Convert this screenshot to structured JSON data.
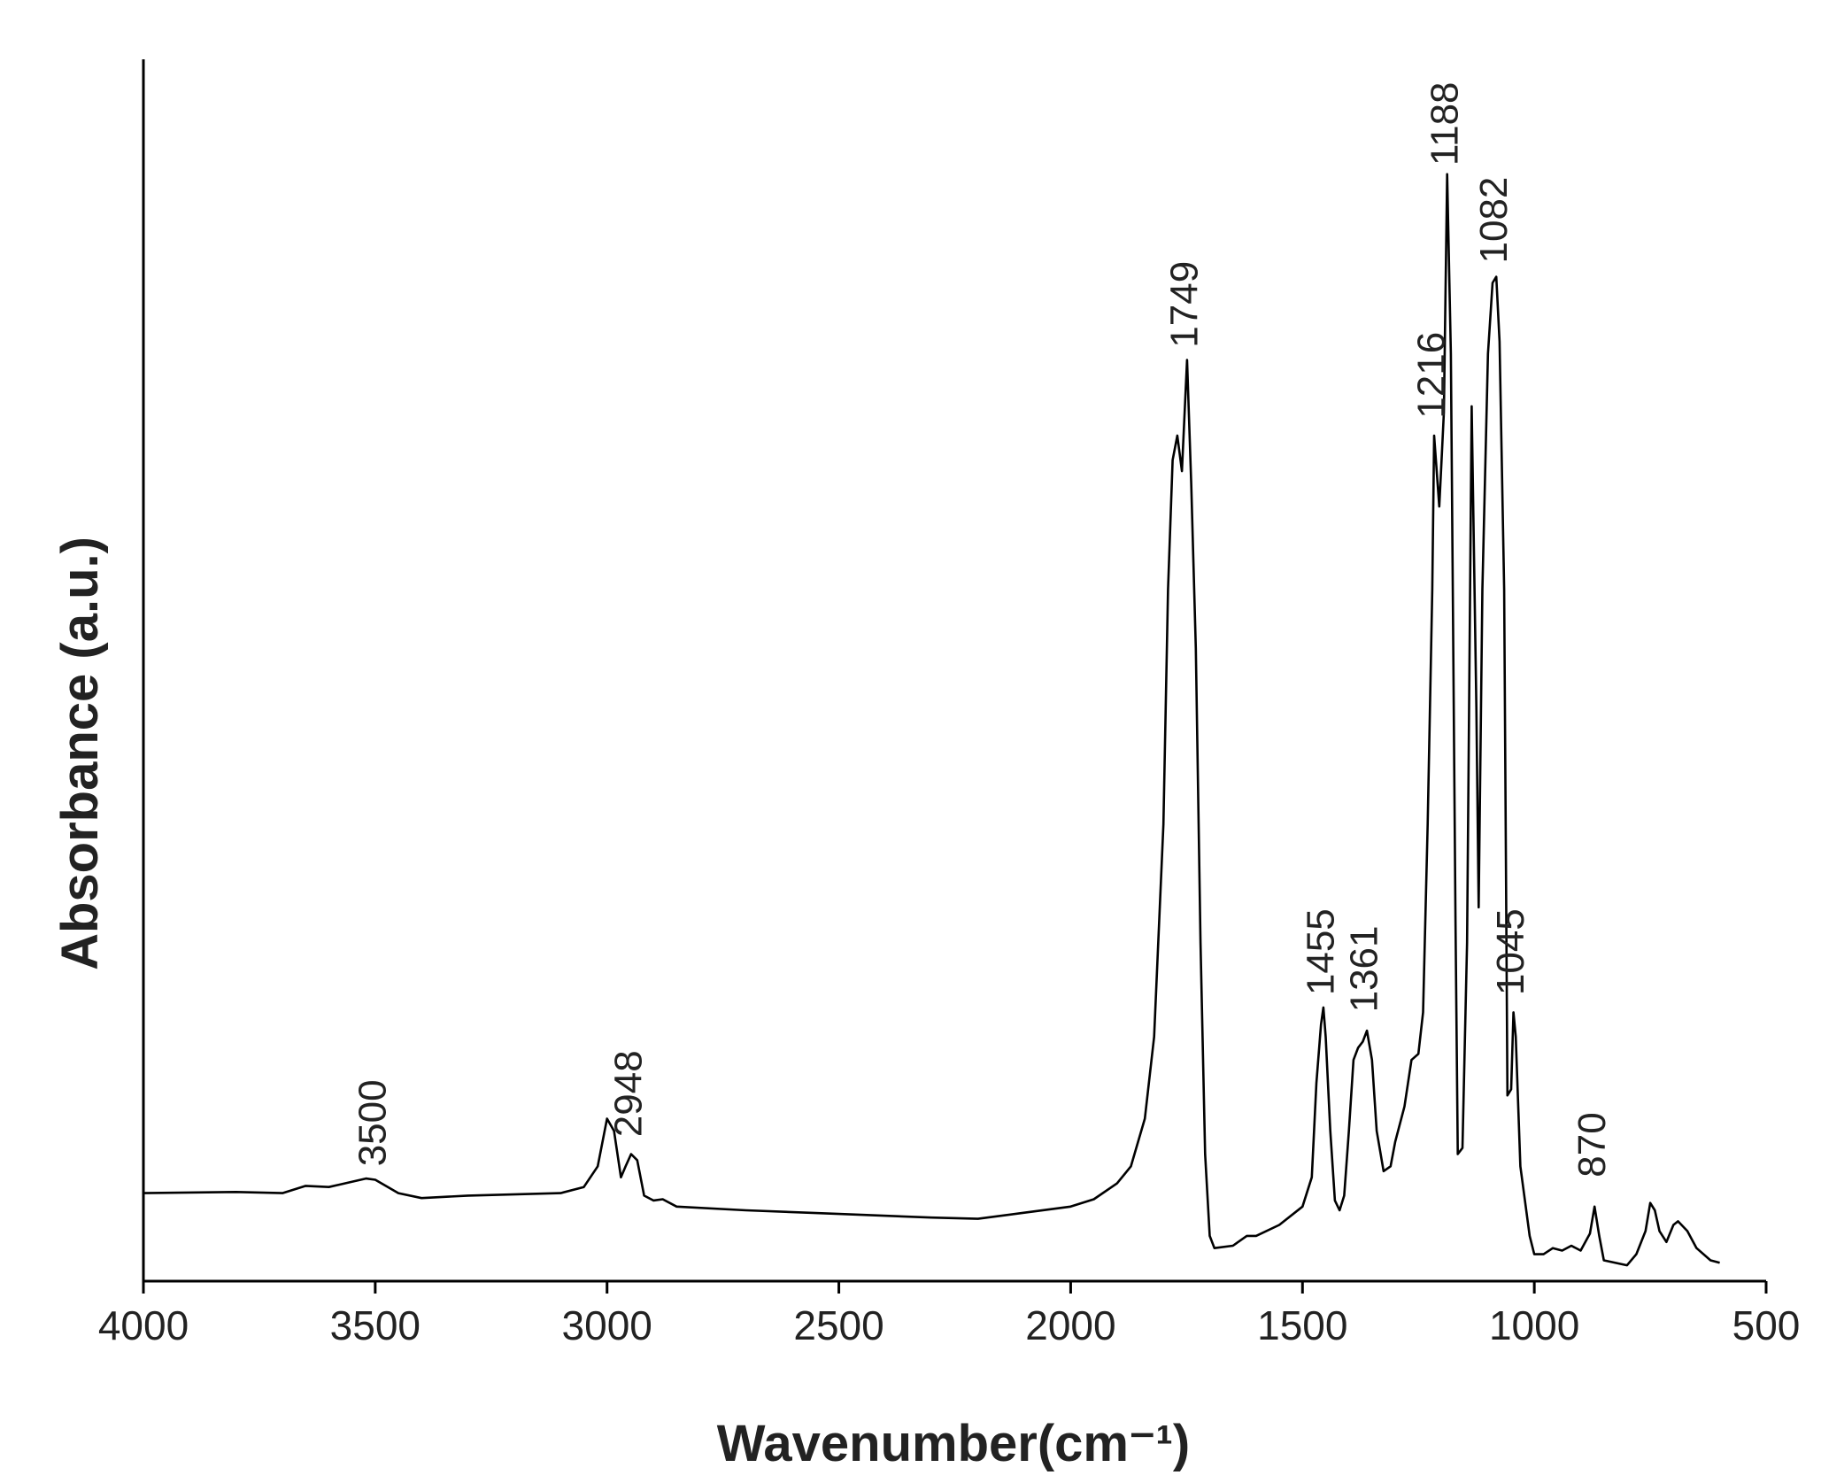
{
  "chart_data": {
    "type": "line",
    "xlabel": "Wavenumber(cm⁻¹)",
    "ylabel": "Absorbance (a.u.)",
    "xlim": [
      4000,
      500
    ],
    "xticks": [
      4000,
      3500,
      3000,
      2500,
      2000,
      1500,
      1000,
      500
    ],
    "ylim": [
      0,
      100
    ],
    "series": [
      {
        "color": "#000000",
        "x": [
          4000,
          3800,
          3700,
          3650,
          3600,
          3520,
          3500,
          3450,
          3400,
          3300,
          3100,
          3050,
          3020,
          3000,
          2985,
          2970,
          2960,
          2948,
          2935,
          2920,
          2900,
          2880,
          2850,
          2700,
          2500,
          2300,
          2200,
          2100,
          2000,
          1950,
          1900,
          1870,
          1840,
          1820,
          1800,
          1790,
          1780,
          1770,
          1760,
          1749,
          1740,
          1730,
          1720,
          1710,
          1700,
          1690,
          1650,
          1620,
          1600,
          1550,
          1500,
          1480,
          1470,
          1460,
          1455,
          1450,
          1440,
          1430,
          1420,
          1410,
          1400,
          1390,
          1380,
          1370,
          1361,
          1350,
          1340,
          1325,
          1310,
          1300,
          1280,
          1265,
          1250,
          1240,
          1230,
          1220,
          1216,
          1205,
          1200,
          1195,
          1188,
          1180,
          1170,
          1165,
          1155,
          1145,
          1135,
          1125,
          1120,
          1112,
          1100,
          1090,
          1082,
          1075,
          1065,
          1058,
          1050,
          1045,
          1040,
          1030,
          1010,
          1000,
          980,
          960,
          940,
          920,
          900,
          880,
          870,
          860,
          850,
          800,
          780,
          760,
          750,
          740,
          730,
          715,
          700,
          690,
          670,
          650,
          620,
          600
        ],
        "values": [
          7.2,
          7.3,
          7.2,
          7.8,
          7.7,
          8.4,
          8.3,
          7.2,
          6.8,
          7.0,
          7.2,
          7.7,
          9.4,
          13.3,
          12.3,
          8.5,
          9.4,
          10.4,
          9.9,
          7.0,
          6.6,
          6.7,
          6.1,
          5.8,
          5.5,
          5.2,
          5.1,
          5.6,
          6.1,
          6.7,
          8.0,
          9.4,
          13.3,
          20.0,
          37.4,
          56.6,
          67.2,
          69.2,
          66.3,
          75.4,
          65.3,
          51.8,
          27.7,
          10.4,
          3.7,
          2.7,
          2.9,
          3.7,
          3.7,
          4.6,
          6.1,
          8.5,
          16.2,
          21.0,
          22.4,
          20.0,
          12.3,
          6.6,
          5.8,
          7.0,
          12.3,
          18.1,
          19.1,
          19.6,
          20.5,
          18.1,
          12.3,
          9.0,
          9.4,
          11.4,
          14.3,
          18.1,
          18.6,
          22.0,
          37.4,
          56.6,
          69.2,
          63.4,
          67.2,
          71.1,
          90.6,
          75.9,
          29.7,
          10.4,
          10.9,
          27.7,
          71.6,
          47.0,
          30.6,
          56.6,
          75.9,
          81.7,
          82.2,
          76.9,
          56.6,
          15.2,
          15.7,
          22.0,
          20.0,
          9.4,
          3.7,
          2.2,
          2.2,
          2.7,
          2.5,
          2.9,
          2.5,
          3.9,
          6.1,
          3.7,
          1.7,
          1.3,
          2.2,
          4.1,
          6.4,
          5.8,
          4.1,
          3.2,
          4.6,
          4.9,
          4.1,
          2.7,
          1.7,
          1.5
        ]
      }
    ],
    "annotations": [
      {
        "x": 3500,
        "y": 9.4
      },
      {
        "x": 2948,
        "y": 11.8
      },
      {
        "x": 1749,
        "y": 76.4
      },
      {
        "x": 1455,
        "y": 23.4
      },
      {
        "x": 1361,
        "y": 22.0
      },
      {
        "x": 1216,
        "y": 70.6
      },
      {
        "x": 1188,
        "y": 91.3
      },
      {
        "x": 1082,
        "y": 83.3
      },
      {
        "x": 1045,
        "y": 23.4
      },
      {
        "x": 870,
        "y": 8.5
      }
    ]
  }
}
